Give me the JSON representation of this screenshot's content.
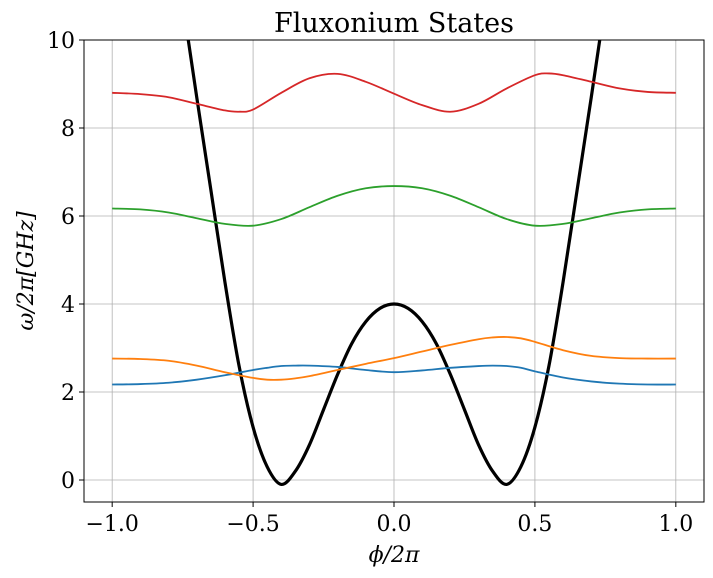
{
  "chart_data": {
    "type": "line",
    "title": "Fluxonium States",
    "xlabel": "ϕ/2π",
    "ylabel": "ω/2π[GHz]",
    "xlim": [
      -1.1,
      1.1
    ],
    "ylim": [
      -0.5,
      10
    ],
    "grid": true,
    "xticks": [
      -1.0,
      -0.5,
      0.0,
      0.5,
      1.0
    ],
    "xtick_labels": [
      "−1.0",
      "−0.5",
      "0.0",
      "0.5",
      "1.0"
    ],
    "yticks": [
      0,
      2,
      4,
      6,
      8,
      10
    ],
    "ytick_labels": [
      "0",
      "2",
      "4",
      "6",
      "8",
      "10"
    ],
    "potential": {
      "color": "#000000",
      "x": [
        -0.73,
        -0.7,
        -0.65,
        -0.6,
        -0.55,
        -0.5,
        -0.45,
        -0.4,
        -0.35,
        -0.3,
        -0.25,
        -0.2,
        -0.15,
        -0.1,
        -0.05,
        0.0,
        0.05,
        0.1,
        0.15,
        0.2,
        0.25,
        0.3,
        0.35,
        0.4,
        0.45,
        0.5,
        0.55,
        0.6,
        0.65,
        0.7,
        0.73
      ],
      "y": [
        10.0,
        8.7,
        6.6,
        4.5,
        2.6,
        1.2,
        0.3,
        -0.1,
        0.2,
        0.8,
        1.6,
        2.4,
        3.1,
        3.6,
        3.9,
        4.0,
        3.9,
        3.6,
        3.1,
        2.4,
        1.6,
        0.8,
        0.2,
        -0.1,
        0.3,
        1.2,
        2.6,
        4.5,
        6.6,
        8.7,
        10.0
      ]
    },
    "series": [
      {
        "color": "#1f77b4",
        "x": [
          -1.0,
          -0.9,
          -0.8,
          -0.7,
          -0.6,
          -0.5,
          -0.45,
          -0.4,
          -0.35,
          -0.3,
          -0.2,
          -0.1,
          0.0,
          0.1,
          0.2,
          0.3,
          0.35,
          0.4,
          0.45,
          0.5,
          0.6,
          0.7,
          0.8,
          0.9,
          1.0
        ],
        "y": [
          2.17,
          2.18,
          2.21,
          2.28,
          2.38,
          2.5,
          2.55,
          2.59,
          2.6,
          2.6,
          2.57,
          2.5,
          2.45,
          2.49,
          2.55,
          2.59,
          2.6,
          2.59,
          2.55,
          2.47,
          2.33,
          2.24,
          2.19,
          2.17,
          2.17
        ]
      },
      {
        "color": "#ff7f0e",
        "x": [
          -1.0,
          -0.9,
          -0.8,
          -0.7,
          -0.6,
          -0.5,
          -0.45,
          -0.4,
          -0.35,
          -0.3,
          -0.2,
          -0.1,
          0.0,
          0.1,
          0.2,
          0.3,
          0.35,
          0.4,
          0.45,
          0.5,
          0.6,
          0.7,
          0.8,
          0.9,
          1.0
        ],
        "y": [
          2.76,
          2.75,
          2.71,
          2.6,
          2.45,
          2.32,
          2.28,
          2.28,
          2.31,
          2.36,
          2.5,
          2.64,
          2.77,
          2.92,
          3.07,
          3.2,
          3.24,
          3.25,
          3.22,
          3.14,
          2.95,
          2.82,
          2.77,
          2.76,
          2.76
        ]
      },
      {
        "color": "#2ca02c",
        "x": [
          -1.0,
          -0.9,
          -0.8,
          -0.7,
          -0.6,
          -0.5,
          -0.4,
          -0.3,
          -0.2,
          -0.1,
          0.0,
          0.1,
          0.2,
          0.3,
          0.4,
          0.5,
          0.6,
          0.7,
          0.8,
          0.9,
          1.0
        ],
        "y": [
          6.17,
          6.15,
          6.08,
          5.95,
          5.82,
          5.78,
          5.93,
          6.2,
          6.46,
          6.63,
          6.68,
          6.63,
          6.46,
          6.2,
          5.93,
          5.78,
          5.82,
          5.95,
          6.08,
          6.15,
          6.17
        ]
      },
      {
        "color": "#d62728",
        "x": [
          -1.0,
          -0.9,
          -0.8,
          -0.7,
          -0.6,
          -0.55,
          -0.5,
          -0.4,
          -0.3,
          -0.2,
          -0.1,
          0.0,
          0.1,
          0.2,
          0.3,
          0.4,
          0.5,
          0.55,
          0.6,
          0.7,
          0.8,
          0.9,
          1.0
        ],
        "y": [
          8.8,
          8.77,
          8.7,
          8.55,
          8.4,
          8.37,
          8.42,
          8.8,
          9.13,
          9.23,
          9.05,
          8.78,
          8.52,
          8.37,
          8.55,
          8.9,
          9.2,
          9.24,
          9.2,
          9.05,
          8.9,
          8.82,
          8.8
        ]
      }
    ]
  }
}
